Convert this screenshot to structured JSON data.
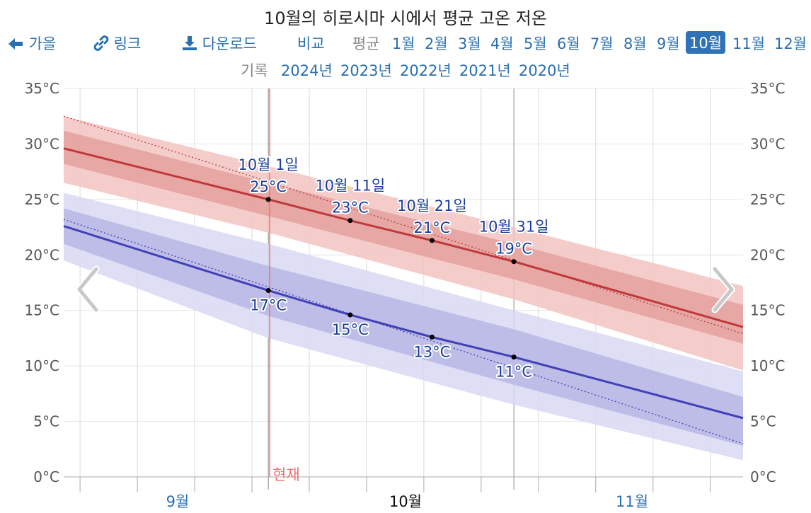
{
  "title": "10월의 히로시마 시에서 평균 고온 저온",
  "nav": {
    "back": "가을",
    "link": "링크",
    "download": "다운로드",
    "compare": "비교",
    "avg_label": "평균",
    "months": [
      "1월",
      "2월",
      "3월",
      "4월",
      "5월",
      "6월",
      "7월",
      "8월",
      "9월",
      "10월",
      "11월",
      "12월"
    ],
    "active_month": "10월"
  },
  "history": {
    "label": "기록",
    "years": [
      "2024년",
      "2023년",
      "2022년",
      "2021년",
      "2020년"
    ]
  },
  "colors": {
    "high": "#c0393a",
    "low": "#4040b8",
    "now": "#f07070",
    "link": "#2a6fb0",
    "label_text": "#1a3f99"
  },
  "chart_data": {
    "type": "line",
    "title": "10월의 히로시마 시에서 평균 고온 저온",
    "y_ticks": [
      "0°C",
      "5°C",
      "10°C",
      "15°C",
      "20°C",
      "25°C",
      "30°C",
      "35°C"
    ],
    "ylim": [
      0,
      35
    ],
    "x_labels": [
      "9월",
      "10월",
      "11월"
    ],
    "now_label": "현재",
    "x_day_range": [
      -24,
      59
    ],
    "now_day": 1,
    "month_boundaries": [
      1,
      31
    ],
    "series": [
      {
        "name": "high",
        "x": [
          -24,
          1,
          11,
          21,
          31,
          59
        ],
        "values": [
          29.6,
          25,
          23.1,
          21.3,
          19.4,
          13.5
        ],
        "band_inner": [
          [
            -24,
            31.2,
            28.2
          ],
          [
            1,
            26.5,
            23.5
          ],
          [
            31,
            21.0,
            17.8
          ],
          [
            59,
            15.5,
            12.0
          ]
        ],
        "band_outer": [
          [
            -24,
            32.5,
            26.5
          ],
          [
            1,
            28.0,
            22.0
          ],
          [
            31,
            22.5,
            16.0
          ],
          [
            59,
            17.2,
            9.6
          ]
        ],
        "trend": [
          [
            -24,
            32.5
          ],
          [
            59,
            12.9
          ]
        ]
      },
      {
        "name": "low",
        "x": [
          -24,
          1,
          11,
          21,
          31,
          59
        ],
        "values": [
          22.6,
          16.8,
          14.6,
          12.6,
          10.8,
          5.3
        ],
        "band_inner": [
          [
            -24,
            24.2,
            21.0
          ],
          [
            1,
            19.0,
            14.5
          ],
          [
            31,
            13.3,
            8.3
          ],
          [
            59,
            7.2,
            2.8
          ]
        ],
        "band_outer": [
          [
            -24,
            25.6,
            19.5
          ],
          [
            1,
            21.0,
            12.5
          ],
          [
            31,
            15.0,
            6.5
          ],
          [
            59,
            9.5,
            1.5
          ]
        ],
        "trend": [
          [
            -24,
            23.2
          ],
          [
            59,
            3.0
          ]
        ]
      }
    ],
    "annotations": [
      {
        "date": "10월 1일",
        "high": "25°C",
        "low": "17°C",
        "x": 1,
        "high_val": 25,
        "low_val": 16.8
      },
      {
        "date": "10월 11일",
        "high": "23°C",
        "low": "15°C",
        "x": 11,
        "high_val": 23.1,
        "low_val": 14.6
      },
      {
        "date": "10월 21일",
        "high": "21°C",
        "low": "13°C",
        "x": 21,
        "high_val": 21.3,
        "low_val": 12.6
      },
      {
        "date": "10월 31일",
        "high": "19°C",
        "low": "11°C",
        "x": 31,
        "high_val": 19.4,
        "low_val": 10.8
      }
    ]
  }
}
